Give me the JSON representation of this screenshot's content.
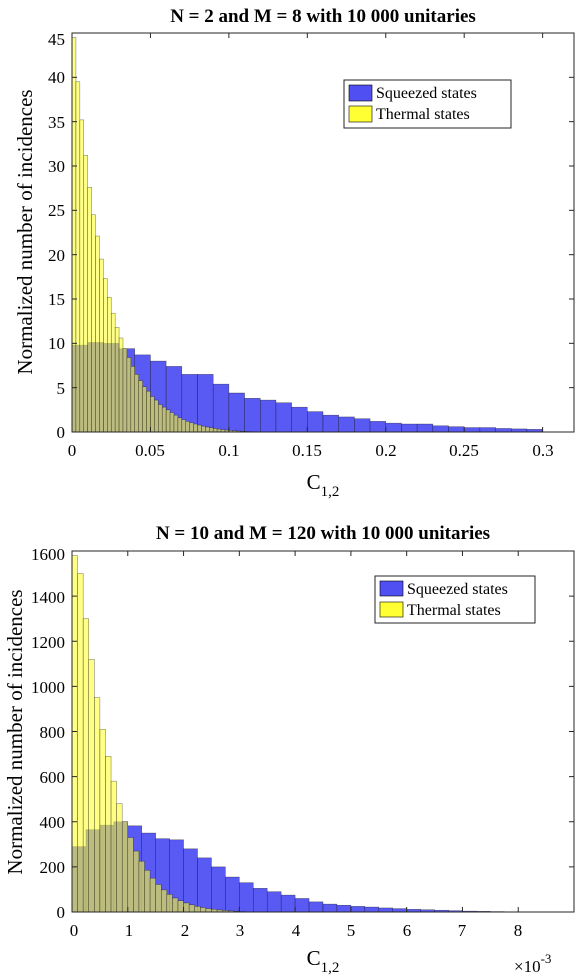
{
  "chart_data": [
    {
      "type": "bar",
      "subtype": "overlaid-histogram",
      "title": "N = 2 and M = 8 with 10 000 unitaries",
      "xlabel": "C",
      "xlabel_subscript": "1,2",
      "ylabel": "Normalized number of incidences",
      "xlim": [
        0,
        0.32
      ],
      "ylim": [
        0,
        45
      ],
      "xticks": [
        "0",
        "0.05",
        "0.1",
        "0.15",
        "0.2",
        "0.25",
        "0.3"
      ],
      "xtick_values": [
        0,
        0.05,
        0.1,
        0.15,
        0.2,
        0.25,
        0.3
      ],
      "yticks": [
        "0",
        "5",
        "10",
        "15",
        "20",
        "25",
        "30",
        "35",
        "40",
        "45"
      ],
      "ytick_values": [
        0,
        5,
        10,
        15,
        20,
        25,
        30,
        35,
        40,
        45
      ],
      "legend_position": "top-right",
      "series": [
        {
          "name": "Squeezed states",
          "color": "#5050f2",
          "bin_width": 0.01,
          "x_start": 0,
          "values": [
            9.8,
            10.1,
            10.0,
            9.4,
            8.7,
            8.0,
            7.4,
            6.5,
            6.5,
            5.4,
            4.4,
            3.8,
            3.6,
            3.3,
            2.8,
            2.3,
            1.9,
            1.7,
            1.5,
            1.2,
            1.0,
            0.9,
            0.9,
            0.7,
            0.6,
            0.5,
            0.5,
            0.4,
            0.35,
            0.3
          ]
        },
        {
          "name": "Thermal states",
          "color": "#ffff33",
          "bin_width": 0.0025,
          "x_start": 0,
          "values": [
            44.5,
            39.5,
            35.2,
            31.2,
            27.6,
            24.5,
            22.1,
            19.5,
            17.3,
            15.2,
            13.4,
            11.8,
            10.6,
            9.4,
            8.4,
            7.4,
            6.5,
            5.8,
            5.1,
            4.6,
            4.0,
            3.6,
            3.1,
            2.8,
            2.5,
            2.2,
            1.9,
            1.6,
            1.4,
            1.2,
            1.05,
            0.9,
            0.78,
            0.66,
            0.56,
            0.48,
            0.4,
            0.33,
            0.27,
            0.22,
            0.18,
            0.14,
            0.11,
            0.08,
            0.06,
            0.04,
            0.03,
            0.02,
            0.01,
            0.01
          ]
        }
      ]
    },
    {
      "type": "bar",
      "subtype": "overlaid-histogram",
      "title": "N = 10 and M = 120 with 10 000 unitaries",
      "xlabel": "C",
      "xlabel_subscript": "1,2",
      "ylabel": "Normalized number of incidences",
      "xlim": [
        0,
        0.009
      ],
      "ylim": [
        0,
        1600
      ],
      "xticks": [
        "0",
        "1",
        "2",
        "3",
        "4",
        "5",
        "6",
        "7",
        "8"
      ],
      "xtick_values": [
        0,
        0.001,
        0.002,
        0.003,
        0.004,
        0.005,
        0.006,
        0.007,
        0.008
      ],
      "x_multiplier": "×10",
      "x_multiplier_exponent": "-3",
      "yticks": [
        "0",
        "200",
        "400",
        "600",
        "800",
        "1000",
        "1200",
        "1400",
        "1600"
      ],
      "ytick_values": [
        0,
        200,
        400,
        600,
        800,
        1000,
        1200,
        1400,
        1600
      ],
      "legend_position": "top-right",
      "series": [
        {
          "name": "Squeezed states",
          "color": "#5050f2",
          "bin_width": 0.00025,
          "x_start": 0,
          "values": [
            290,
            365,
            385,
            400,
            382,
            350,
            325,
            320,
            280,
            240,
            200,
            155,
            130,
            105,
            90,
            75,
            60,
            45,
            35,
            30,
            25,
            22,
            18,
            15,
            12,
            10,
            8,
            6,
            4,
            3,
            2,
            1
          ]
        },
        {
          "name": "Thermal states",
          "color": "#ffff33",
          "bin_width": 0.0001,
          "x_start": 0,
          "values": [
            1580,
            1500,
            1300,
            1120,
            950,
            810,
            690,
            580,
            480,
            400,
            330,
            270,
            225,
            185,
            150,
            122,
            98,
            78,
            62,
            50,
            40,
            32,
            25,
            20,
            15,
            12,
            9,
            7,
            5,
            3,
            2,
            1
          ]
        }
      ]
    }
  ]
}
